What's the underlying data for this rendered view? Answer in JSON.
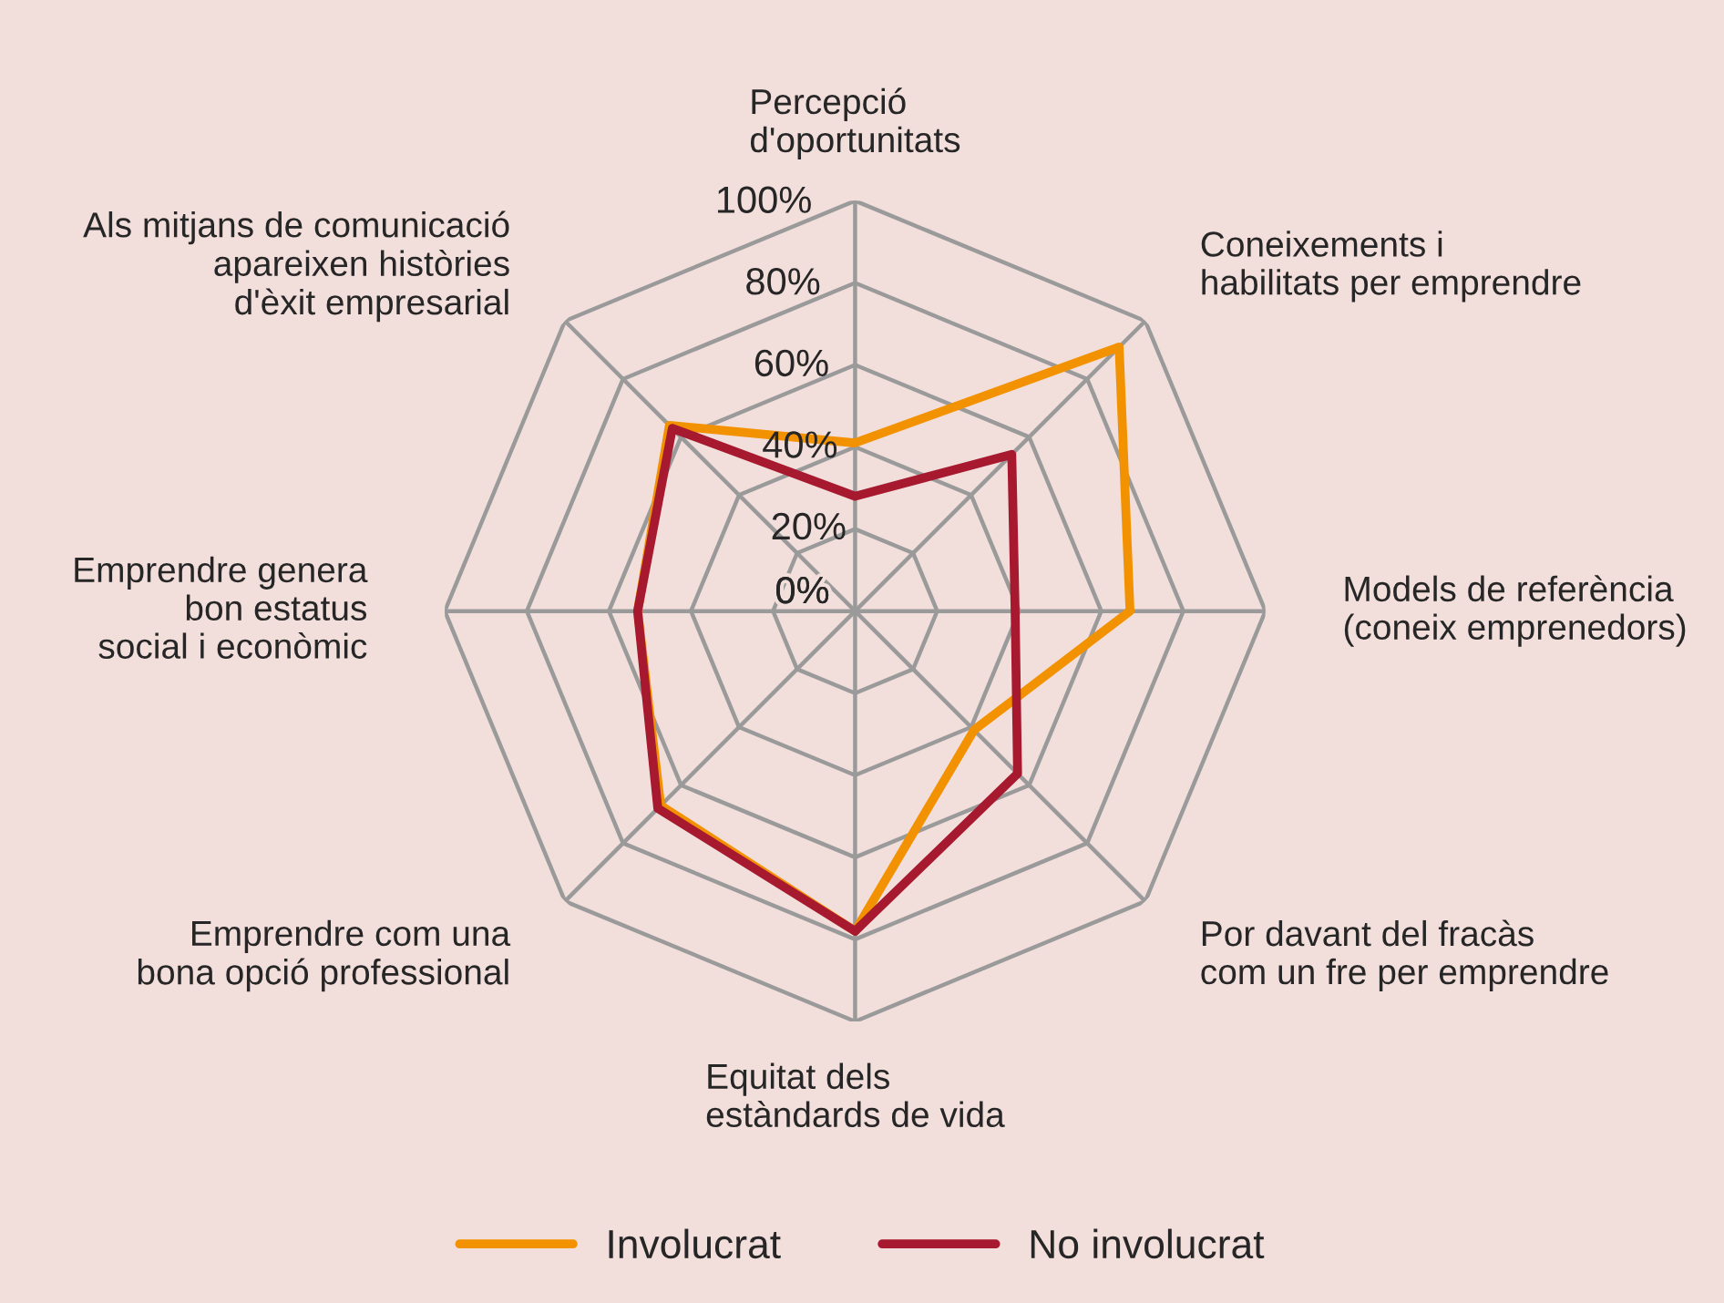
{
  "chart_data": {
    "type": "radar",
    "categories": [
      "Percepció\nd'oportunitats",
      "Coneixements i\nhabilitats per emprendre",
      "Models de referència\n(coneix emprenedors)",
      "Por davant del fracàs\ncom un fre per emprendre",
      "Equitat dels\nestàndards de vida",
      "Emprendre com una\nbona opció professional",
      "Emprendre genera\nbon estatus\nsocial i econòmic",
      "Als mitjans de comunicació\napareixen històries\nd'èxit empresarial"
    ],
    "series": [
      {
        "name": "Involucrat",
        "color": "#f39200",
        "values": [
          41,
          91,
          67,
          41,
          78,
          67,
          53,
          64
        ]
      },
      {
        "name": "No involucrat",
        "color": "#a6192e",
        "values": [
          28,
          54,
          39,
          56,
          78,
          68,
          53,
          63
        ]
      }
    ],
    "ylim": [
      0,
      100
    ],
    "yticks": [
      {
        "value": 0,
        "label": "0%"
      },
      {
        "value": 20,
        "label": "20%"
      },
      {
        "value": 40,
        "label": "40%"
      },
      {
        "value": 60,
        "label": "60%"
      },
      {
        "value": 80,
        "label": "80%"
      },
      {
        "value": 100,
        "label": "100%"
      }
    ],
    "grid": true,
    "legend": "bottom"
  }
}
